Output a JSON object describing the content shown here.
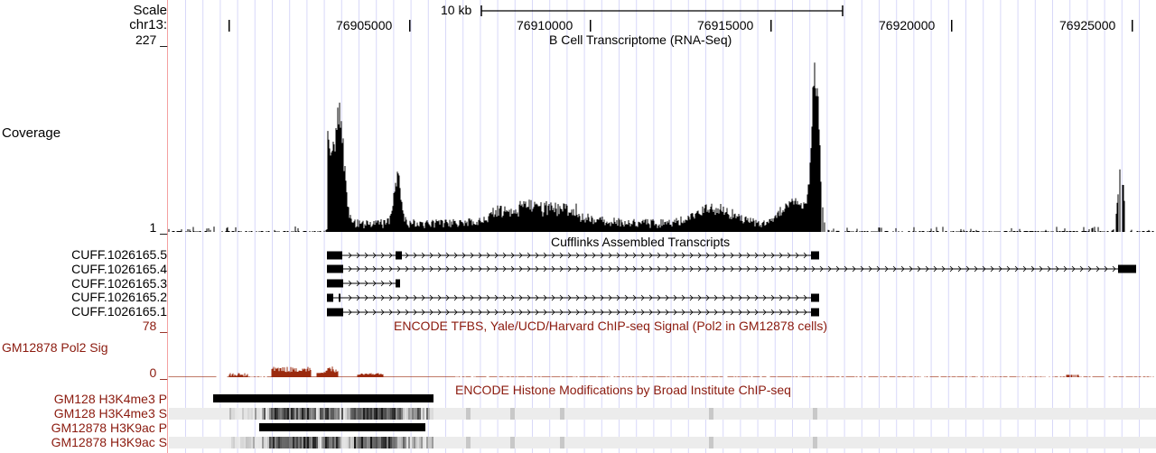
{
  "ruler": {
    "scale_label": "Scale",
    "chrom_label": "chr13:",
    "scale_bar": "10 kb",
    "positions": [
      "76905000",
      "76910000",
      "76915000",
      "76920000",
      "76925000"
    ]
  },
  "coverage_track": {
    "title": "B Cell Transcriptome (RNA-Seq)",
    "label": "Coverage",
    "max": "227 _",
    "min": "1 _",
    "color": "#000000"
  },
  "cufflinks_track": {
    "title": "Cufflinks Assembled Transcripts",
    "transcripts": [
      "CUFF.1026165.5",
      "CUFF.1026165.4",
      "CUFF.1026165.3",
      "CUFF.1026165.2",
      "CUFF.1026165.1"
    ]
  },
  "tfbs_track": {
    "title": "ENCODE TFBS, Yale/UCD/Harvard ChIP-seq Signal (Pol2 in GM12878 cells)",
    "label": "GM12878 Pol2 Sig",
    "max": "78 _",
    "min": "0 _",
    "color": "#9b2a0e"
  },
  "histone_track": {
    "title": "ENCODE Histone Modifications by Broad Institute ChIP-seq",
    "rows": [
      "GM128 H3K4me3 P",
      "GM128 H3K4me3 S",
      "GM12878 H3K9ac P",
      "GM12878 H3K9ac S"
    ]
  }
}
